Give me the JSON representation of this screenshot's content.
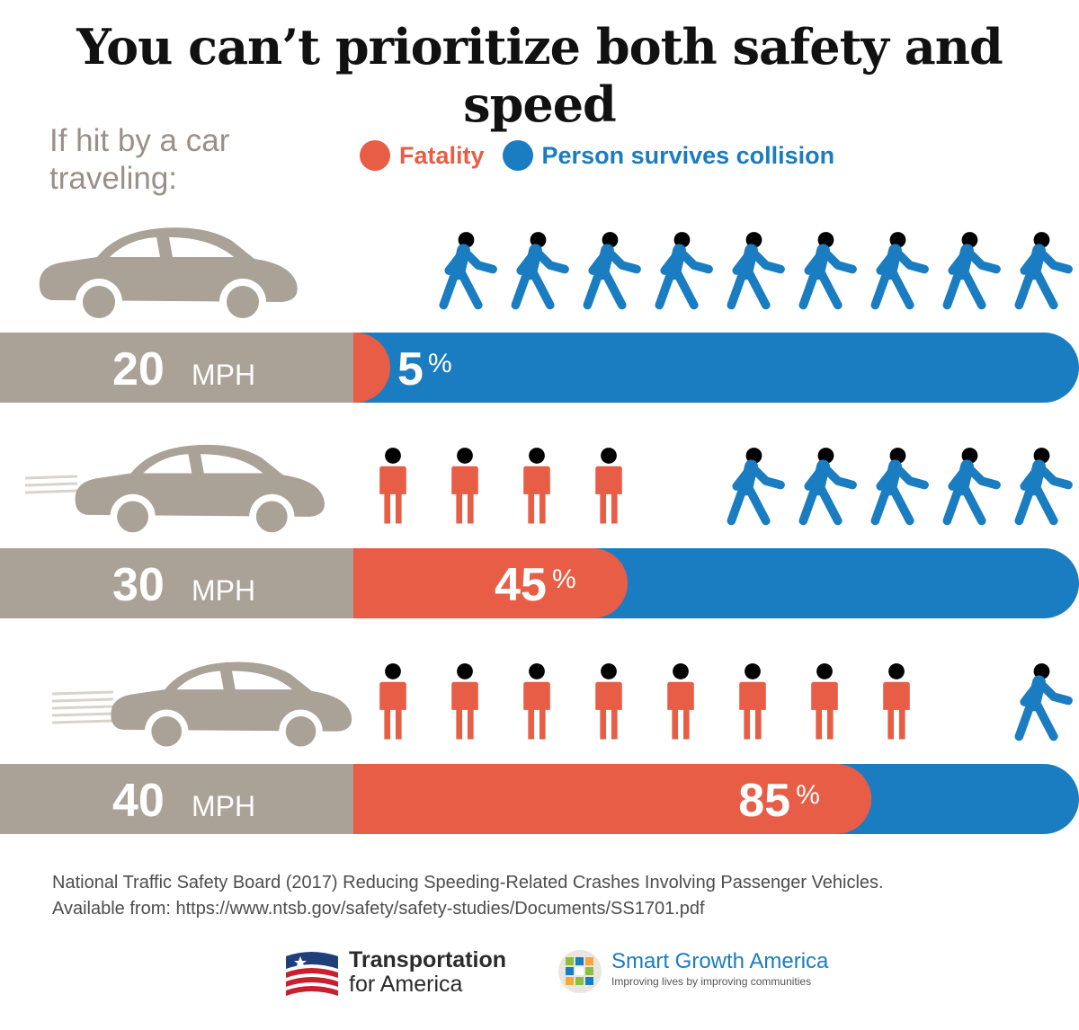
{
  "title": "You can’t prioritize both safety and speed",
  "subtitle": "If hit by a car traveling:",
  "legend": {
    "fatality": "Fatality",
    "survives": "Person survives collision"
  },
  "colors": {
    "fatality": "#e85d45",
    "survives": "#1a7cc1",
    "car": "#aaa197",
    "bar_left": "#aaa197"
  },
  "chart_data": {
    "type": "bar",
    "categories": [
      "20",
      "30",
      "40"
    ],
    "unit": "MPH",
    "series": [
      {
        "name": "Fatality",
        "values": [
          5,
          45,
          85
        ]
      },
      {
        "name": "Person survives collision",
        "values": [
          95,
          55,
          15
        ]
      }
    ],
    "value_suffix": "%",
    "pictogram_total": 10
  },
  "source": {
    "line1": "National Traffic Safety Board (2017) Reducing Speeding-Related Crashes Involving Passenger Vehicles.",
    "line2": "Available from: https://www.ntsb.gov/safety/safety-studies/Documents/SS1701.pdf"
  },
  "logos": {
    "t4a_line1": "Transportation",
    "t4a_line2": "for America",
    "sga_name": "Smart Growth America",
    "sga_tagline": "Improving lives by improving communities"
  }
}
